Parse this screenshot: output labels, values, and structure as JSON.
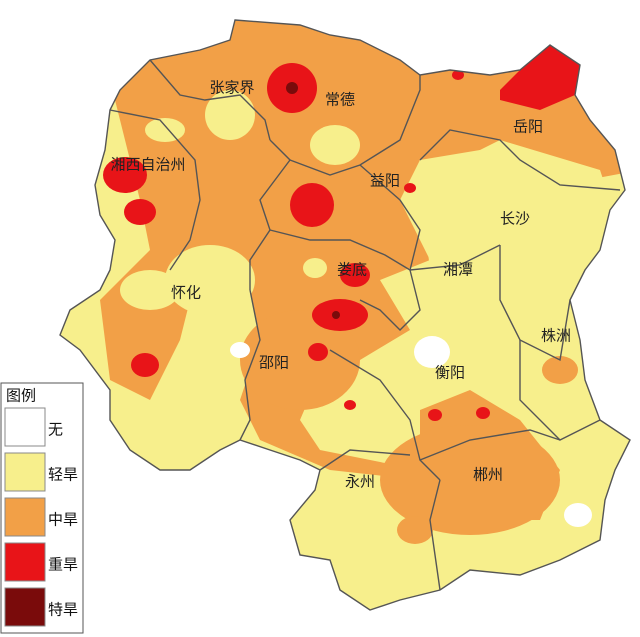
{
  "legend": {
    "title": "图例",
    "items": [
      {
        "label": "无",
        "color": "#ffffff"
      },
      {
        "label": "轻旱",
        "color": "#f7ef8c"
      },
      {
        "label": "中旱",
        "color": "#f2a047"
      },
      {
        "label": "重旱",
        "color": "#e81418"
      },
      {
        "label": "特旱",
        "color": "#7a0b0b"
      }
    ]
  },
  "cities": [
    "张家界",
    "常德",
    "岳阳",
    "湘西自治州",
    "益阳",
    "长沙",
    "娄底",
    "湘潭",
    "怀化",
    "邵阳",
    "株洲",
    "衡阳",
    "永州",
    "郴州"
  ]
}
